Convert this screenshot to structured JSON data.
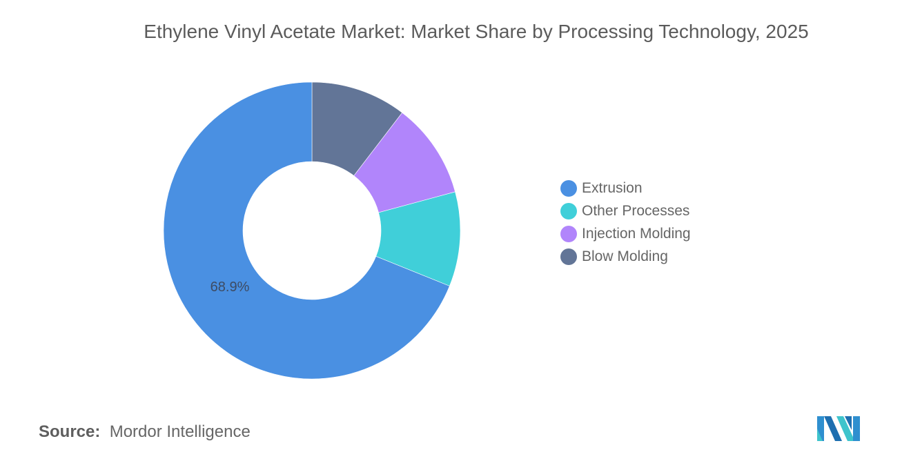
{
  "header": {
    "title": "Ethylene Vinyl Acetate Market: Market Share by Processing Technology, 2025"
  },
  "chart_data": {
    "type": "pie",
    "subtype": "donut",
    "title": "Ethylene Vinyl Acetate Market: Market Share by Processing Technology, 2025",
    "categories": [
      "Extrusion",
      "Other Processes",
      "Injection Molding",
      "Blow Molding"
    ],
    "values": [
      68.9,
      10.3,
      10.4,
      10.4
    ],
    "colors": [
      "#4a90e2",
      "#40cfd9",
      "#b185fb",
      "#627597"
    ],
    "data_labels": [
      {
        "category": "Extrusion",
        "label": "68.9%"
      }
    ],
    "legend_position": "right",
    "start_angle_deg": 0,
    "direction": "clockwise_from_top_reversed_order"
  },
  "legend": {
    "items": [
      {
        "label": "Extrusion",
        "color": "#4a90e2"
      },
      {
        "label": "Other Processes",
        "color": "#40cfd9"
      },
      {
        "label": "Injection Molding",
        "color": "#b185fb"
      },
      {
        "label": "Blow Molding",
        "color": "#627597"
      }
    ]
  },
  "label": {
    "extrusion_value": "68.9%"
  },
  "footer": {
    "source_label": "Source:",
    "source_value": "Mordor Intelligence",
    "logo": "mordor-intelligence-logo"
  }
}
